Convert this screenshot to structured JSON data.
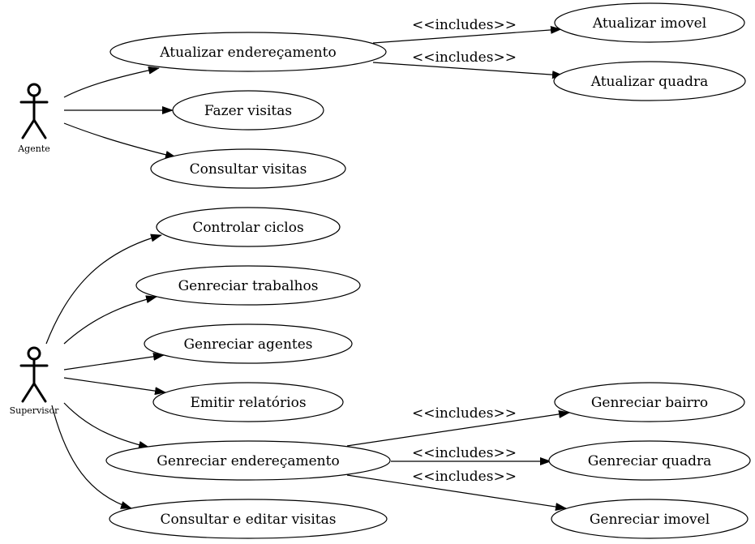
{
  "actors": [
    {
      "id": "agente",
      "label": "Agente"
    },
    {
      "id": "supervisor",
      "label": "Supervisor"
    }
  ],
  "use_cases": [
    {
      "id": "atualizar_enderecamento",
      "label": "Atualizar endereçamento"
    },
    {
      "id": "fazer_visitas",
      "label": "Fazer visitas"
    },
    {
      "id": "consultar_visitas",
      "label": "Consultar visitas"
    },
    {
      "id": "atualizar_imovel",
      "label": "Atualizar imovel"
    },
    {
      "id": "atualizar_quadra",
      "label": "Atualizar quadra"
    },
    {
      "id": "controlar_ciclos",
      "label": "Controlar ciclos"
    },
    {
      "id": "gerenciar_trabalhos",
      "label": "Genreciar trabalhos"
    },
    {
      "id": "gerenciar_agentes",
      "label": "Genreciar agentes"
    },
    {
      "id": "emitir_relatorios",
      "label": "Emitir relatórios"
    },
    {
      "id": "gerenciar_enderecamento",
      "label": "Genreciar endereçamento"
    },
    {
      "id": "consultar_editar_visitas",
      "label": "Consultar e editar visitas"
    },
    {
      "id": "gerenciar_bairro",
      "label": "Genreciar bairro"
    },
    {
      "id": "gerenciar_quadra",
      "label": "Genreciar quadra"
    },
    {
      "id": "gerenciar_imovel",
      "label": "Genreciar imovel"
    }
  ],
  "associations": [
    {
      "from": "agente",
      "to": "atualizar_enderecamento"
    },
    {
      "from": "agente",
      "to": "fazer_visitas"
    },
    {
      "from": "agente",
      "to": "consultar_visitas"
    },
    {
      "from": "supervisor",
      "to": "controlar_ciclos"
    },
    {
      "from": "supervisor",
      "to": "gerenciar_trabalhos"
    },
    {
      "from": "supervisor",
      "to": "gerenciar_agentes"
    },
    {
      "from": "supervisor",
      "to": "emitir_relatorios"
    },
    {
      "from": "supervisor",
      "to": "gerenciar_enderecamento"
    },
    {
      "from": "supervisor",
      "to": "consultar_editar_visitas"
    }
  ],
  "includes": [
    {
      "from": "atualizar_enderecamento",
      "to": "atualizar_imovel",
      "label": "<<includes>>"
    },
    {
      "from": "atualizar_enderecamento",
      "to": "atualizar_quadra",
      "label": "<<includes>>"
    },
    {
      "from": "gerenciar_enderecamento",
      "to": "gerenciar_bairro",
      "label": "<<includes>>"
    },
    {
      "from": "gerenciar_enderecamento",
      "to": "gerenciar_quadra",
      "label": "<<includes>>"
    },
    {
      "from": "gerenciar_enderecamento",
      "to": "gerenciar_imovel",
      "label": "<<includes>>"
    }
  ]
}
